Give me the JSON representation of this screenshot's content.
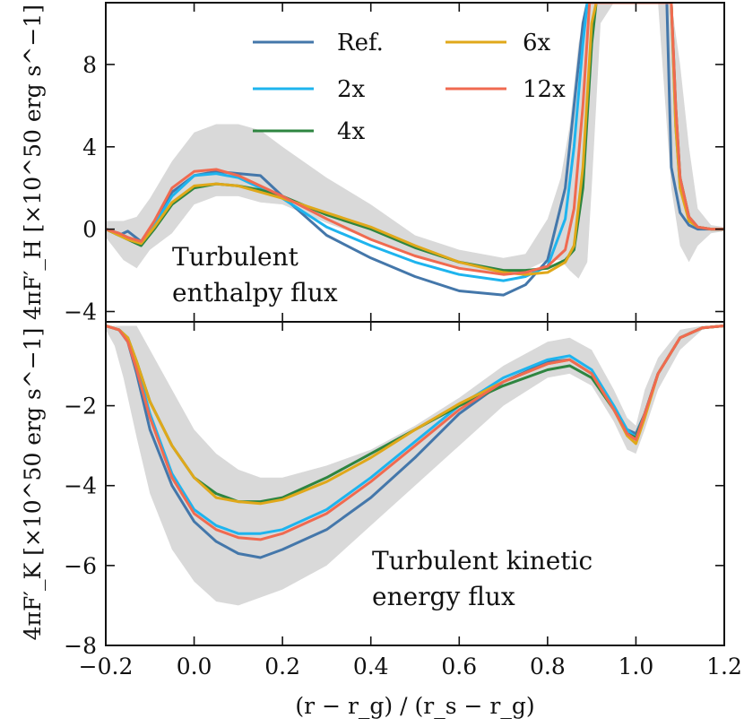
{
  "figure": {
    "xlabel": "(r − r_g) / (r_s − r_g)"
  },
  "chart_data": [
    {
      "panel": "top",
      "type": "line",
      "ylabel": "4πF′_H [×10^50 erg s^−1]",
      "annotation": [
        "Turbulent",
        "enthalpy flux"
      ],
      "xlim": [
        -0.2,
        1.2
      ],
      "ylim": [
        -4.5,
        11
      ],
      "xticks": [
        -0.2,
        0.0,
        0.2,
        0.4,
        0.6,
        0.8,
        1.0,
        1.2
      ],
      "xtick_labels": [
        "−0.2",
        "0.0",
        "0.2",
        "0.4",
        "0.6",
        "0.8",
        "1.0",
        "1.2"
      ],
      "yticks": [
        -4,
        0,
        4,
        8
      ],
      "ytick_labels": [
        "−4",
        "0",
        "4",
        "8"
      ],
      "legend": {
        "location": "upper-center",
        "columns": 2
      },
      "band": {
        "name": "spread",
        "color": "#d9d9d9",
        "x": [
          -0.2,
          -0.16,
          -0.13,
          -0.1,
          -0.05,
          0.0,
          0.05,
          0.1,
          0.15,
          0.2,
          0.3,
          0.4,
          0.5,
          0.6,
          0.7,
          0.75,
          0.8,
          0.83,
          0.85,
          0.87,
          0.89,
          0.9,
          0.92,
          0.95,
          1.0,
          1.05,
          1.08,
          1.1,
          1.12,
          1.14,
          1.17,
          1.2
        ],
        "lower": [
          -0.4,
          -1.5,
          -1.9,
          -1.0,
          -0.2,
          1.2,
          1.6,
          1.6,
          1.3,
          1.2,
          0.3,
          -0.5,
          -1.3,
          -1.9,
          -2.2,
          -2.0,
          -1.5,
          -1.5,
          -2.0,
          -2.4,
          -1.6,
          2.0,
          10,
          11,
          11,
          11,
          2.0,
          -0.8,
          -1.6,
          -0.8,
          -0.2,
          -0.1
        ],
        "upper": [
          0.4,
          0.4,
          0.6,
          1.5,
          3.3,
          4.7,
          5.1,
          5.1,
          4.8,
          4.0,
          2.5,
          1.2,
          -0.3,
          -1.0,
          -1.4,
          -1.2,
          0.5,
          2.5,
          5.0,
          9.0,
          11,
          11,
          11,
          11,
          11,
          11,
          11,
          8.0,
          4.0,
          1.0,
          0.2,
          0.1
        ]
      },
      "series": [
        {
          "name": "Ref.",
          "color": "#4477aa",
          "x": [
            -0.2,
            -0.17,
            -0.15,
            -0.12,
            -0.09,
            -0.05,
            0.0,
            0.05,
            0.1,
            0.15,
            0.2,
            0.3,
            0.4,
            0.5,
            0.6,
            0.7,
            0.75,
            0.8,
            0.84,
            0.86,
            0.88,
            0.89,
            0.9,
            1.07,
            1.08,
            1.1,
            1.12,
            1.14,
            1.17,
            1.2
          ],
          "values": [
            0.0,
            -0.3,
            -0.1,
            -0.6,
            0.3,
            1.8,
            2.6,
            2.8,
            2.7,
            2.6,
            1.6,
            -0.3,
            -1.4,
            -2.3,
            -3.0,
            -3.2,
            -2.7,
            -1.5,
            2.0,
            6.0,
            10.0,
            11.0,
            11.0,
            11.0,
            3.0,
            0.8,
            0.2,
            0.0,
            0.0,
            0.0
          ]
        },
        {
          "name": "2x",
          "color": "#1eb4ee",
          "x": [
            -0.2,
            -0.17,
            -0.15,
            -0.12,
            -0.09,
            -0.05,
            0.0,
            0.05,
            0.1,
            0.15,
            0.2,
            0.3,
            0.4,
            0.5,
            0.6,
            0.7,
            0.75,
            0.8,
            0.84,
            0.86,
            0.88,
            0.89,
            0.9,
            1.08,
            1.09,
            1.1,
            1.12,
            1.14,
            1.17,
            1.2
          ],
          "values": [
            0.0,
            -0.2,
            -0.4,
            -0.7,
            0.2,
            1.6,
            2.6,
            2.7,
            2.5,
            2.0,
            1.5,
            0.1,
            -0.8,
            -1.6,
            -2.2,
            -2.5,
            -2.3,
            -1.8,
            0.5,
            4.0,
            9.0,
            11.0,
            11.0,
            11.0,
            5.0,
            2.0,
            0.5,
            0.1,
            0.0,
            0.0
          ]
        },
        {
          "name": "4x",
          "color": "#2e8540",
          "x": [
            -0.2,
            -0.17,
            -0.15,
            -0.12,
            -0.09,
            -0.05,
            0.0,
            0.05,
            0.1,
            0.15,
            0.2,
            0.3,
            0.4,
            0.5,
            0.6,
            0.7,
            0.75,
            0.8,
            0.84,
            0.86,
            0.88,
            0.9,
            0.91,
            1.08,
            1.09,
            1.1,
            1.12,
            1.14,
            1.17,
            1.2
          ],
          "values": [
            0.0,
            -0.3,
            -0.5,
            -0.8,
            0.0,
            1.2,
            2.0,
            2.2,
            2.1,
            1.9,
            1.6,
            0.7,
            0.0,
            -0.9,
            -1.6,
            -2.0,
            -2.0,
            -1.9,
            -1.5,
            -1.0,
            2.0,
            9.0,
            11.0,
            11.0,
            6.0,
            2.5,
            0.6,
            0.1,
            0.0,
            0.0
          ]
        },
        {
          "name": "6x",
          "color": "#e0a81a",
          "x": [
            -0.2,
            -0.17,
            -0.15,
            -0.12,
            -0.09,
            -0.05,
            0.0,
            0.05,
            0.1,
            0.15,
            0.2,
            0.3,
            0.4,
            0.5,
            0.6,
            0.7,
            0.75,
            0.8,
            0.84,
            0.86,
            0.88,
            0.9,
            0.91,
            1.08,
            1.09,
            1.1,
            1.12,
            1.14,
            1.17,
            1.2
          ],
          "values": [
            0.0,
            -0.3,
            -0.5,
            -0.7,
            0.1,
            1.3,
            2.1,
            2.2,
            2.1,
            1.8,
            1.5,
            0.8,
            0.1,
            -0.8,
            -1.6,
            -2.1,
            -2.2,
            -2.1,
            -1.6,
            -0.8,
            3.0,
            10.0,
            11.0,
            11.0,
            5.0,
            2.0,
            0.4,
            0.1,
            0.0,
            0.0
          ]
        },
        {
          "name": "12x",
          "color": "#f06a50",
          "x": [
            -0.2,
            -0.17,
            -0.15,
            -0.12,
            -0.09,
            -0.05,
            0.0,
            0.05,
            0.1,
            0.15,
            0.2,
            0.3,
            0.4,
            0.5,
            0.6,
            0.7,
            0.75,
            0.8,
            0.84,
            0.86,
            0.88,
            0.895,
            0.9,
            1.08,
            1.09,
            1.1,
            1.12,
            1.14,
            1.17,
            1.2
          ],
          "values": [
            0.0,
            -0.2,
            -0.4,
            -0.6,
            0.4,
            2.0,
            2.8,
            2.9,
            2.6,
            2.1,
            1.6,
            0.5,
            -0.5,
            -1.3,
            -1.9,
            -2.2,
            -2.1,
            -1.8,
            -1.0,
            1.0,
            6.0,
            11.0,
            11.0,
            11.0,
            6.0,
            2.5,
            0.6,
            0.1,
            0.0,
            0.0
          ]
        }
      ]
    },
    {
      "panel": "bottom",
      "type": "line",
      "ylabel": "4πF′_K [×10^50 erg s^−1]",
      "annotation": [
        "Turbulent kinetic",
        "energy flux"
      ],
      "xlim": [
        -0.2,
        1.2
      ],
      "ylim": [
        -8,
        0.1
      ],
      "xticks": [
        -0.2,
        0.0,
        0.2,
        0.4,
        0.6,
        0.8,
        1.0,
        1.2
      ],
      "xtick_labels": [
        "−0.2",
        "0.0",
        "0.2",
        "0.4",
        "0.6",
        "0.8",
        "1.0",
        "1.2"
      ],
      "yticks": [
        -8,
        -6,
        -4,
        -2
      ],
      "ytick_labels": [
        "−8",
        "−6",
        "−4",
        "−2"
      ],
      "band": {
        "name": "spread",
        "color": "#d9d9d9",
        "x": [
          -0.2,
          -0.18,
          -0.16,
          -0.13,
          -0.1,
          -0.05,
          0.0,
          0.05,
          0.1,
          0.15,
          0.2,
          0.3,
          0.4,
          0.5,
          0.6,
          0.7,
          0.8,
          0.85,
          0.9,
          0.95,
          0.98,
          1.0,
          1.02,
          1.05,
          1.1,
          1.15,
          1.2
        ],
        "lower": [
          -0.1,
          -0.5,
          -1.3,
          -2.8,
          -4.2,
          -5.6,
          -6.4,
          -6.9,
          -7.0,
          -6.8,
          -6.6,
          -6.0,
          -5.0,
          -4.0,
          -3.0,
          -2.0,
          -1.3,
          -1.2,
          -1.5,
          -2.4,
          -3.1,
          -3.2,
          -2.6,
          -1.6,
          -0.6,
          -0.1,
          0.0
        ],
        "upper": [
          0.0,
          0.0,
          0.0,
          0.0,
          -0.6,
          -1.6,
          -2.6,
          -3.2,
          -3.6,
          -3.8,
          -3.8,
          -3.5,
          -3.1,
          -2.5,
          -1.8,
          -1.0,
          -0.4,
          -0.3,
          -0.6,
          -1.6,
          -2.3,
          -2.5,
          -1.6,
          -0.8,
          -0.1,
          0.0,
          0.0
        ]
      },
      "series": [
        {
          "name": "Ref.",
          "color": "#4477aa",
          "x": [
            -0.2,
            -0.17,
            -0.15,
            -0.13,
            -0.1,
            -0.05,
            0.0,
            0.05,
            0.1,
            0.15,
            0.2,
            0.3,
            0.4,
            0.5,
            0.6,
            0.7,
            0.8,
            0.85,
            0.9,
            0.95,
            0.98,
            1.0,
            1.02,
            1.05,
            1.1,
            1.15,
            1.2
          ],
          "values": [
            0.0,
            -0.1,
            -0.4,
            -1.2,
            -2.6,
            -4.0,
            -4.9,
            -5.4,
            -5.7,
            -5.8,
            -5.6,
            -5.1,
            -4.3,
            -3.3,
            -2.2,
            -1.4,
            -0.9,
            -0.85,
            -1.2,
            -2.1,
            -2.6,
            -2.7,
            -2.2,
            -1.2,
            -0.3,
            -0.05,
            0.0
          ]
        },
        {
          "name": "2x",
          "color": "#1eb4ee",
          "x": [
            -0.2,
            -0.17,
            -0.15,
            -0.13,
            -0.1,
            -0.05,
            0.0,
            0.05,
            0.1,
            0.15,
            0.2,
            0.3,
            0.4,
            0.5,
            0.6,
            0.7,
            0.8,
            0.85,
            0.9,
            0.95,
            0.98,
            1.0,
            1.02,
            1.05,
            1.1,
            1.15,
            1.2
          ],
          "values": [
            0.0,
            -0.1,
            -0.4,
            -1.0,
            -2.2,
            -3.7,
            -4.6,
            -5.0,
            -5.2,
            -5.2,
            -5.1,
            -4.6,
            -3.8,
            -2.9,
            -2.0,
            -1.3,
            -0.85,
            -0.75,
            -1.1,
            -2.0,
            -2.6,
            -2.8,
            -2.2,
            -1.2,
            -0.3,
            -0.05,
            0.0
          ]
        },
        {
          "name": "4x",
          "color": "#2e8540",
          "x": [
            -0.2,
            -0.17,
            -0.15,
            -0.13,
            -0.1,
            -0.05,
            0.0,
            0.05,
            0.1,
            0.15,
            0.2,
            0.3,
            0.4,
            0.5,
            0.6,
            0.7,
            0.8,
            0.85,
            0.9,
            0.95,
            0.98,
            1.0,
            1.02,
            1.05,
            1.1,
            1.15,
            1.2
          ],
          "values": [
            0.0,
            -0.1,
            -0.3,
            -0.9,
            -1.9,
            -3.0,
            -3.8,
            -4.2,
            -4.4,
            -4.4,
            -4.3,
            -3.8,
            -3.2,
            -2.6,
            -2.0,
            -1.5,
            -1.1,
            -1.0,
            -1.3,
            -2.1,
            -2.7,
            -2.8,
            -2.2,
            -1.2,
            -0.3,
            -0.05,
            0.0
          ]
        },
        {
          "name": "6x",
          "color": "#e0a81a",
          "x": [
            -0.2,
            -0.17,
            -0.15,
            -0.13,
            -0.1,
            -0.05,
            0.0,
            0.05,
            0.1,
            0.15,
            0.2,
            0.3,
            0.4,
            0.5,
            0.6,
            0.7,
            0.8,
            0.85,
            0.9,
            0.95,
            0.98,
            1.0,
            1.02,
            1.05,
            1.1,
            1.15,
            1.2
          ],
          "values": [
            0.0,
            -0.1,
            -0.3,
            -0.9,
            -1.9,
            -3.0,
            -3.8,
            -4.3,
            -4.4,
            -4.45,
            -4.35,
            -3.9,
            -3.3,
            -2.6,
            -1.95,
            -1.4,
            -0.95,
            -0.85,
            -1.2,
            -2.1,
            -2.75,
            -2.95,
            -2.3,
            -1.2,
            -0.3,
            -0.05,
            0.0
          ]
        },
        {
          "name": "12x",
          "color": "#f06a50",
          "x": [
            -0.2,
            -0.17,
            -0.15,
            -0.13,
            -0.1,
            -0.05,
            0.0,
            0.05,
            0.1,
            0.15,
            0.2,
            0.3,
            0.4,
            0.5,
            0.6,
            0.7,
            0.8,
            0.85,
            0.9,
            0.95,
            0.98,
            1.0,
            1.02,
            1.05,
            1.1,
            1.15,
            1.2
          ],
          "values": [
            0.0,
            -0.1,
            -0.4,
            -1.1,
            -2.3,
            -3.8,
            -4.7,
            -5.1,
            -5.3,
            -5.35,
            -5.2,
            -4.7,
            -3.9,
            -3.0,
            -2.1,
            -1.4,
            -0.95,
            -0.85,
            -1.2,
            -2.1,
            -2.7,
            -2.85,
            -2.2,
            -1.2,
            -0.3,
            -0.05,
            0.0
          ]
        }
      ]
    }
  ]
}
